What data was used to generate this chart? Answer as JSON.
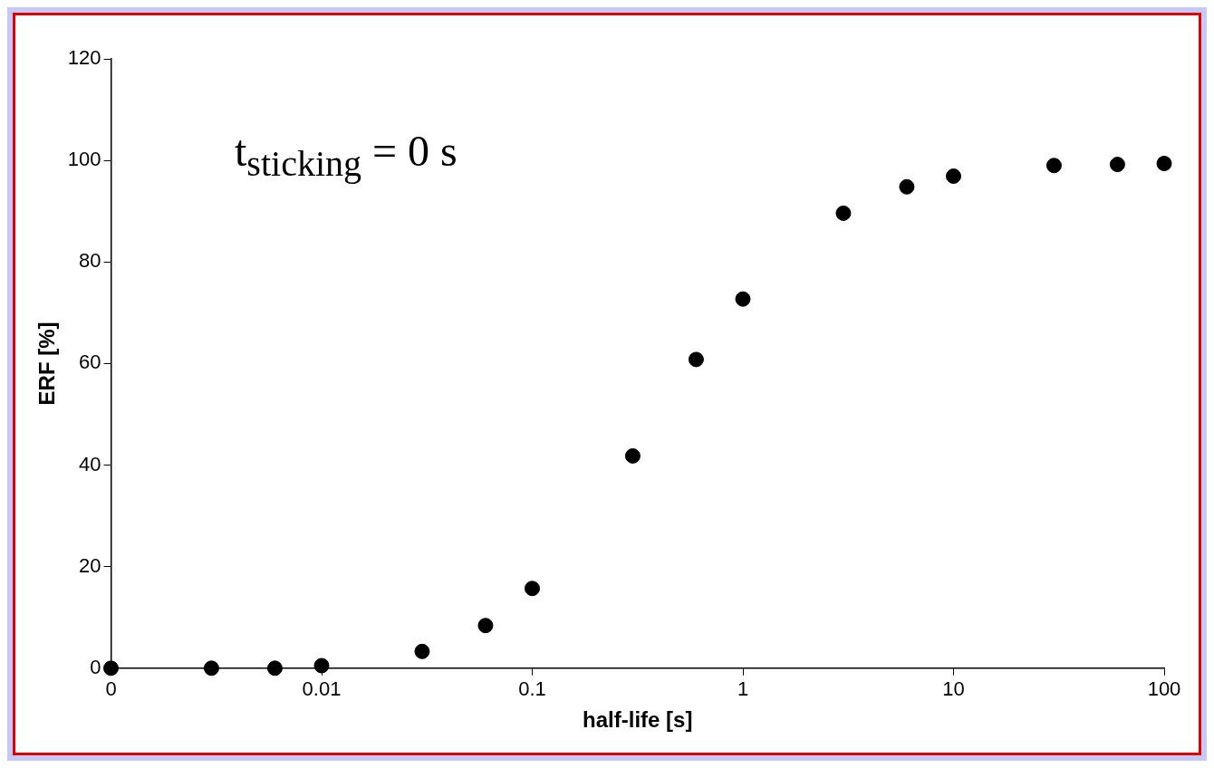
{
  "chart_data": {
    "type": "scatter",
    "xlabel": "half-life [s]",
    "ylabel": "ERF [%]",
    "annotations": [
      "t$_{sticking}$ = 0 s"
    ],
    "log": "x",
    "grid": false,
    "legend": false,
    "marker": "circle",
    "xlim": [
      0.001,
      100
    ],
    "xticks": [
      {
        "value": 0.001,
        "label": "0"
      },
      0.01,
      0.1,
      1,
      10,
      100
    ],
    "ylim": [
      0,
      120
    ],
    "yticks": [
      0,
      20,
      40,
      60,
      80,
      100,
      120
    ],
    "series": [
      {
        "color": "#000000",
        "x": [
          0.001,
          0.003,
          0.006,
          0.01,
          0.03,
          0.06,
          0.1,
          0.3,
          0.6,
          1,
          3,
          6,
          10,
          30,
          60,
          100
        ],
        "values": [
          0,
          0,
          0,
          0.5,
          3.3,
          8.4,
          15.7,
          41.8,
          60.8,
          72.7,
          89.6,
          94.8,
          96.9,
          99,
          99.2,
          99.4
        ]
      }
    ]
  }
}
